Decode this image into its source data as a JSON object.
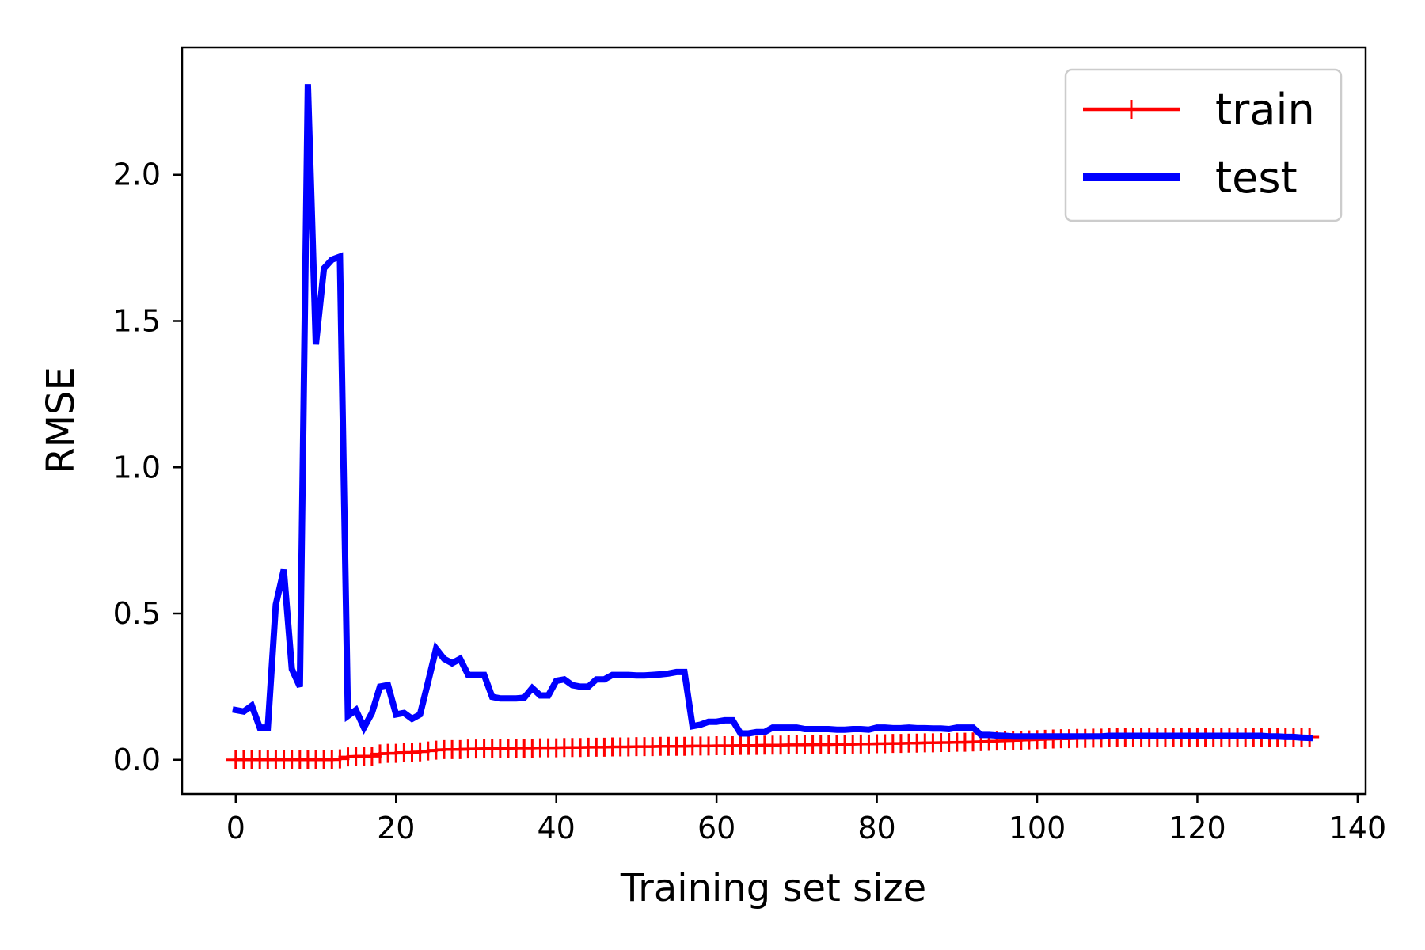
{
  "chart_data": {
    "type": "line",
    "title": "",
    "xlabel": "Training set size",
    "ylabel": "RMSE",
    "xlim": [
      -6.7,
      141.0
    ],
    "ylim": [
      -0.117,
      2.435
    ],
    "xticks": [
      0,
      20,
      40,
      60,
      80,
      100,
      120,
      140
    ],
    "yticks": [
      0.0,
      0.5,
      1.0,
      1.5,
      2.0
    ],
    "xtick_labels": [
      "0",
      "20",
      "40",
      "60",
      "80",
      "100",
      "120",
      "140"
    ],
    "ytick_labels": [
      "0.0",
      "0.5",
      "1.0",
      "1.5",
      "2.0"
    ],
    "grid": false,
    "legend_position": "top-right",
    "series": [
      {
        "name": "train",
        "color": "#ff0000",
        "marker": "plus",
        "x": [
          0,
          1,
          2,
          3,
          4,
          5,
          6,
          7,
          8,
          9,
          10,
          11,
          12,
          13,
          14,
          15,
          16,
          17,
          18,
          19,
          20,
          21,
          22,
          23,
          24,
          25,
          26,
          27,
          28,
          29,
          30,
          31,
          32,
          33,
          34,
          35,
          36,
          37,
          38,
          39,
          40,
          41,
          42,
          43,
          44,
          45,
          46,
          47,
          48,
          49,
          50,
          51,
          52,
          53,
          54,
          55,
          56,
          57,
          58,
          59,
          60,
          61,
          62,
          63,
          64,
          65,
          66,
          67,
          68,
          69,
          70,
          71,
          72,
          73,
          74,
          75,
          76,
          77,
          78,
          79,
          80,
          81,
          82,
          83,
          84,
          85,
          86,
          87,
          88,
          89,
          90,
          91,
          92,
          93,
          94,
          95,
          96,
          97,
          98,
          99,
          100,
          101,
          102,
          103,
          104,
          105,
          106,
          107,
          108,
          109,
          110,
          111,
          112,
          113,
          114,
          115,
          116,
          117,
          118,
          119,
          120,
          121,
          122,
          123,
          124,
          125,
          126,
          127,
          128,
          129,
          130,
          131,
          132,
          133,
          134
        ],
        "y": [
          0.0,
          0.0,
          0.0,
          0.0,
          0.0,
          0.0,
          0.0,
          0.0,
          0.0,
          0.0,
          0.0,
          0.0,
          0.0,
          0.003,
          0.01,
          0.012,
          0.012,
          0.012,
          0.02,
          0.022,
          0.022,
          0.025,
          0.025,
          0.027,
          0.03,
          0.033,
          0.035,
          0.035,
          0.035,
          0.037,
          0.037,
          0.038,
          0.038,
          0.039,
          0.039,
          0.04,
          0.04,
          0.04,
          0.041,
          0.041,
          0.041,
          0.042,
          0.042,
          0.042,
          0.043,
          0.043,
          0.043,
          0.044,
          0.044,
          0.044,
          0.045,
          0.045,
          0.045,
          0.046,
          0.046,
          0.046,
          0.046,
          0.047,
          0.047,
          0.047,
          0.048,
          0.048,
          0.048,
          0.049,
          0.049,
          0.049,
          0.05,
          0.05,
          0.05,
          0.051,
          0.051,
          0.051,
          0.052,
          0.052,
          0.052,
          0.053,
          0.053,
          0.053,
          0.054,
          0.054,
          0.055,
          0.055,
          0.056,
          0.056,
          0.057,
          0.057,
          0.058,
          0.058,
          0.059,
          0.059,
          0.06,
          0.06,
          0.061,
          0.062,
          0.063,
          0.064,
          0.065,
          0.066,
          0.067,
          0.068,
          0.069,
          0.07,
          0.071,
          0.072,
          0.072,
          0.073,
          0.073,
          0.074,
          0.074,
          0.075,
          0.075,
          0.075,
          0.076,
          0.076,
          0.076,
          0.077,
          0.077,
          0.077,
          0.077,
          0.078,
          0.078,
          0.078,
          0.078,
          0.078,
          0.078,
          0.078,
          0.078,
          0.078,
          0.078,
          0.078,
          0.078,
          0.078,
          0.078,
          0.078,
          0.078
        ]
      },
      {
        "name": "test",
        "color": "#0000ff",
        "marker": "none",
        "x": [
          0,
          1,
          2,
          3,
          4,
          5,
          6,
          7,
          8,
          9,
          10,
          11,
          12,
          13,
          14,
          15,
          16,
          17,
          18,
          19,
          20,
          21,
          22,
          23,
          24,
          25,
          26,
          27,
          28,
          29,
          30,
          31,
          32,
          33,
          34,
          35,
          36,
          37,
          38,
          39,
          40,
          41,
          42,
          43,
          44,
          45,
          46,
          47,
          48,
          49,
          50,
          51,
          52,
          53,
          54,
          55,
          56,
          57,
          58,
          59,
          60,
          61,
          62,
          63,
          64,
          65,
          66,
          67,
          68,
          69,
          70,
          71,
          72,
          73,
          74,
          75,
          76,
          77,
          78,
          79,
          80,
          81,
          82,
          83,
          84,
          85,
          86,
          87,
          88,
          89,
          90,
          91,
          92,
          93,
          94,
          95,
          96,
          97,
          98,
          99,
          100,
          101,
          102,
          103,
          104,
          105,
          106,
          107,
          108,
          109,
          110,
          111,
          112,
          113,
          114,
          115,
          116,
          117,
          118,
          119,
          120,
          121,
          122,
          123,
          124,
          125,
          126,
          127,
          128,
          129,
          130,
          131,
          132,
          133,
          134
        ],
        "y": [
          0.17,
          0.165,
          0.185,
          0.11,
          0.11,
          0.53,
          0.65,
          0.31,
          0.25,
          2.31,
          1.42,
          1.68,
          1.71,
          1.72,
          0.15,
          0.17,
          0.11,
          0.16,
          0.25,
          0.255,
          0.155,
          0.16,
          0.14,
          0.155,
          0.265,
          0.38,
          0.345,
          0.33,
          0.345,
          0.29,
          0.29,
          0.29,
          0.215,
          0.21,
          0.21,
          0.21,
          0.212,
          0.245,
          0.22,
          0.22,
          0.27,
          0.275,
          0.255,
          0.25,
          0.25,
          0.275,
          0.275,
          0.29,
          0.29,
          0.29,
          0.288,
          0.288,
          0.29,
          0.292,
          0.295,
          0.3,
          0.3,
          0.115,
          0.12,
          0.13,
          0.13,
          0.135,
          0.135,
          0.09,
          0.09,
          0.095,
          0.095,
          0.11,
          0.11,
          0.11,
          0.11,
          0.105,
          0.105,
          0.105,
          0.105,
          0.103,
          0.103,
          0.105,
          0.105,
          0.103,
          0.11,
          0.11,
          0.108,
          0.108,
          0.11,
          0.108,
          0.108,
          0.107,
          0.107,
          0.105,
          0.11,
          0.11,
          0.11,
          0.085,
          0.085,
          0.083,
          0.082,
          0.08,
          0.08,
          0.08,
          0.08,
          0.08,
          0.08,
          0.08,
          0.08,
          0.08,
          0.08,
          0.08,
          0.08,
          0.082,
          0.082,
          0.082,
          0.082,
          0.082,
          0.082,
          0.082,
          0.082,
          0.082,
          0.082,
          0.082,
          0.082,
          0.082,
          0.082,
          0.082,
          0.082,
          0.082,
          0.082,
          0.082,
          0.082,
          0.08,
          0.08,
          0.078,
          0.078,
          0.076,
          0.075
        ]
      }
    ]
  }
}
